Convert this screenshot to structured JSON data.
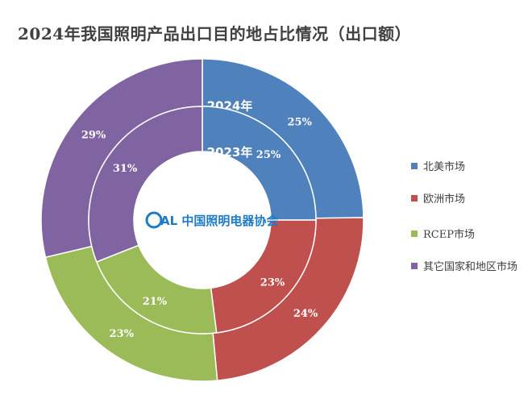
{
  "title": "2024年我国照明产品出口目的地占比情况（出口额）",
  "center_logo": "CALI 中国照明电器协会",
  "chart_data": {
    "type": "doughnut",
    "title": "2024年我国照明产品出口目的地占比情况（出口额）",
    "categories": [
      "北美市场",
      "欧洲市场",
      "RCEP市场",
      "其它国家和地区市场"
    ],
    "colors": [
      "#4F81BD",
      "#C0504D",
      "#9BBB59",
      "#8064A2"
    ],
    "series": [
      {
        "name": "2024年",
        "ring": "outer",
        "values": [
          25,
          24,
          23,
          29
        ]
      },
      {
        "name": "2023年",
        "ring": "inner",
        "values": [
          25,
          23,
          21,
          31
        ]
      }
    ],
    "unit": "%",
    "legend": "right"
  }
}
